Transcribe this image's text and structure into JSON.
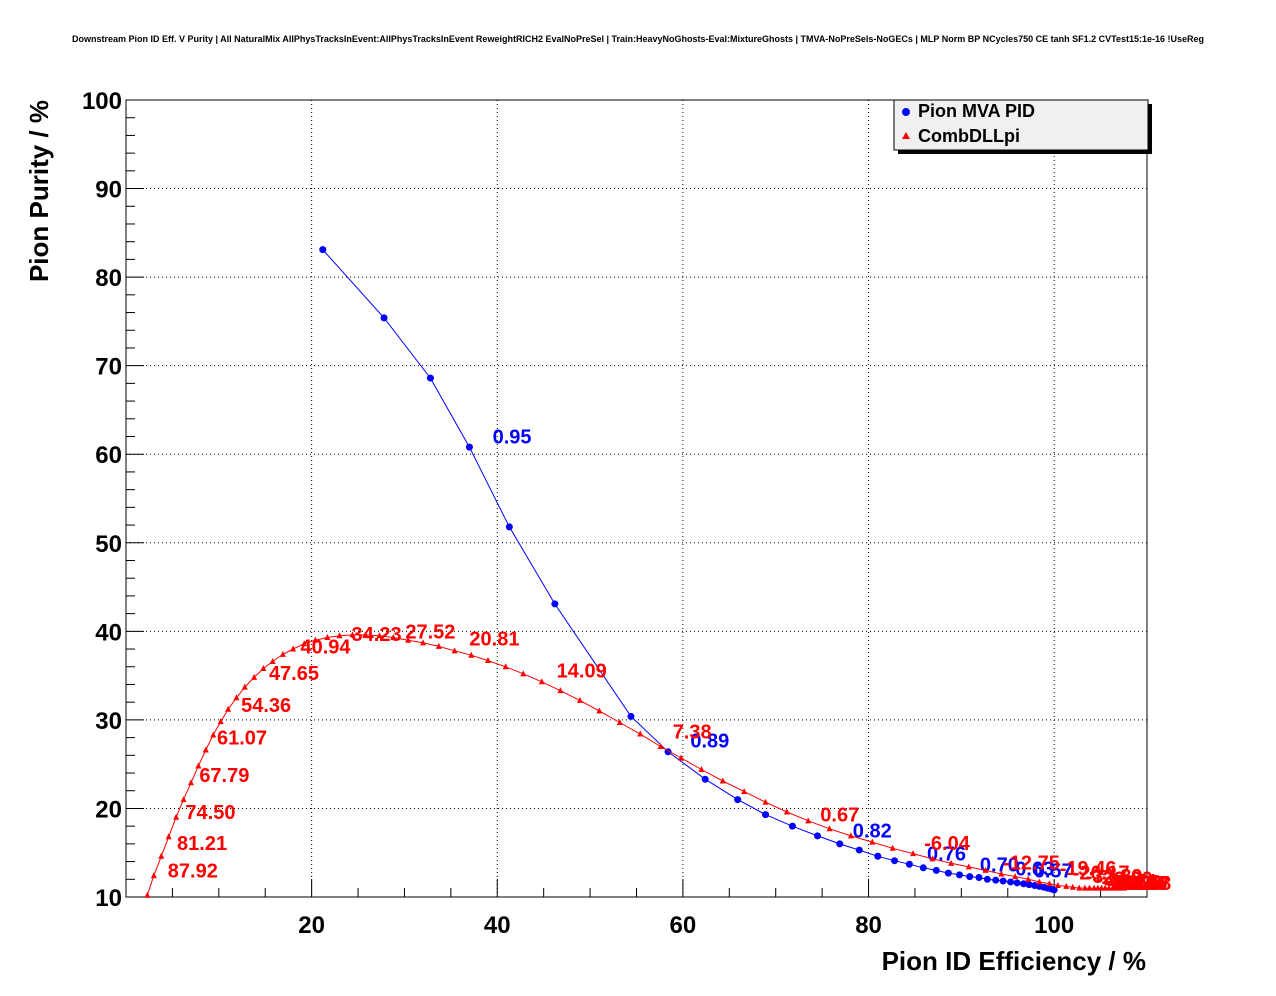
{
  "chart_data": {
    "type": "line",
    "title": "Downstream Pion ID Eff. V Purity | All NaturalMix AllPhysTracksInEvent:AllPhysTracksInEvent ReweightRICH2 EvalNoPreSel | Train:HeavyNoGhosts-Eval:MixtureGhosts | TMVA-NoPreSels-NoGECs | MLP Norm BP NCycles750 CE tanh SF1.2 CVTest15:1e-16 !UseReg",
    "xlabel": "Pion ID Efficiency / %",
    "ylabel": "Pion Purity / %",
    "xlim": [
      0,
      110
    ],
    "ylim": [
      10,
      100
    ],
    "xticks": [
      20,
      40,
      60,
      80,
      100
    ],
    "yticks": [
      10,
      20,
      30,
      40,
      50,
      60,
      70,
      80,
      90,
      100
    ],
    "grid": true,
    "legend_position": "top-right",
    "series": [
      {
        "name": "Pion MVA PID",
        "color": "#0000ff",
        "marker": "circle",
        "x": [
          21.2,
          27.8,
          32.8,
          37.0,
          41.3,
          46.2,
          54.4,
          58.4,
          62.4,
          65.9,
          68.9,
          71.8,
          74.5,
          76.9,
          79.0,
          81.0,
          82.8,
          84.4,
          85.9,
          87.3,
          88.6,
          89.8,
          90.9,
          91.9,
          92.8,
          93.7,
          94.5,
          95.3,
          96.0,
          96.7,
          97.3,
          97.9,
          98.4,
          98.9,
          99.3,
          99.7,
          100.0
        ],
        "y": [
          83.1,
          75.4,
          68.6,
          60.8,
          51.8,
          43.1,
          30.4,
          26.4,
          23.3,
          21.0,
          19.3,
          18.0,
          16.9,
          16.0,
          15.3,
          14.6,
          14.1,
          13.7,
          13.3,
          13.0,
          12.7,
          12.5,
          12.3,
          12.2,
          12.0,
          11.9,
          11.8,
          11.7,
          11.6,
          11.5,
          11.4,
          11.3,
          11.2,
          11.1,
          11.0,
          10.9,
          10.8
        ],
        "labels": [
          {
            "text": "0.95",
            "x": 39.5,
            "y": 61.2
          },
          {
            "text": "0.89",
            "x": 60.8,
            "y": 26.9
          },
          {
            "text": "0.82",
            "x": 78.3,
            "y": 16.7
          },
          {
            "text": "0.76",
            "x": 86.3,
            "y": 14.1
          },
          {
            "text": "0.70",
            "x": 92.0,
            "y": 12.9
          },
          {
            "text": "0.63",
            "x": 95.8,
            "y": 12.4
          },
          {
            "text": "0.57",
            "x": 97.8,
            "y": 12.2
          }
        ]
      },
      {
        "name": "CombDLLpi",
        "color": "#ff0000",
        "marker": "triangle",
        "x": [
          2.3,
          3.0,
          3.8,
          4.6,
          5.4,
          6.2,
          7.0,
          7.8,
          8.6,
          9.4,
          10.2,
          11.0,
          11.9,
          12.8,
          13.8,
          14.8,
          15.8,
          16.9,
          18.0,
          19.2,
          20.4,
          21.7,
          23.0,
          24.4,
          25.8,
          27.3,
          28.8,
          30.4,
          32.0,
          33.7,
          35.4,
          37.2,
          39.0,
          40.9,
          42.8,
          44.8,
          46.8,
          48.9,
          51.0,
          53.2,
          55.4,
          57.6,
          59.8,
          62.0,
          64.3,
          66.6,
          68.9,
          71.2,
          73.5,
          75.8,
          78.1,
          80.4,
          82.6,
          84.8,
          86.9,
          88.9,
          90.8,
          92.6,
          94.3,
          95.8,
          97.2,
          98.4,
          99.5,
          100.4,
          101.3,
          102.0,
          102.7,
          103.3,
          103.8,
          104.3,
          104.7,
          105.1,
          105.5,
          105.9,
          106.3,
          106.7,
          107.1,
          107.5
        ],
        "y": [
          10.2,
          12.4,
          14.6,
          16.8,
          19.0,
          21.0,
          22.9,
          24.8,
          26.6,
          28.3,
          29.8,
          31.2,
          32.5,
          33.7,
          34.8,
          35.8,
          36.6,
          37.4,
          38.0,
          38.6,
          39.0,
          39.3,
          39.5,
          39.6,
          39.6,
          39.5,
          39.3,
          39.0,
          38.7,
          38.3,
          37.8,
          37.3,
          36.7,
          36.0,
          35.2,
          34.3,
          33.3,
          32.2,
          31.0,
          29.7,
          28.4,
          27.0,
          25.7,
          24.4,
          23.1,
          21.9,
          20.7,
          19.6,
          18.6,
          17.7,
          16.9,
          16.2,
          15.5,
          14.9,
          14.3,
          13.8,
          13.4,
          13.0,
          12.6,
          12.3,
          12.0,
          11.7,
          11.5,
          11.3,
          11.2,
          11.1,
          11.0,
          11.0,
          11.0,
          11.0,
          11.0,
          11.0,
          11.0,
          11.0,
          11.0,
          11.0,
          11.0,
          11.0
        ],
        "labels": [
          {
            "text": "87.92",
            "x": 4.5,
            "y": 12.2
          },
          {
            "text": "81.21",
            "x": 5.5,
            "y": 15.3
          },
          {
            "text": "74.50",
            "x": 6.4,
            "y": 18.8
          },
          {
            "text": "67.79",
            "x": 7.9,
            "y": 23.0
          },
          {
            "text": "61.07",
            "x": 9.8,
            "y": 27.2
          },
          {
            "text": "54.36",
            "x": 12.4,
            "y": 30.9
          },
          {
            "text": "47.65",
            "x": 15.4,
            "y": 34.5
          },
          {
            "text": "40.94",
            "x": 18.8,
            "y": 37.5
          },
          {
            "text": "34.23",
            "x": 24.3,
            "y": 38.9
          },
          {
            "text": "27.52",
            "x": 30.1,
            "y": 39.2
          },
          {
            "text": "20.81",
            "x": 37.0,
            "y": 38.4
          },
          {
            "text": "14.09",
            "x": 46.4,
            "y": 34.8
          },
          {
            "text": "7.38",
            "x": 58.9,
            "y": 27.9
          },
          {
            "text": "0.67",
            "x": 74.8,
            "y": 18.5
          },
          {
            "text": "-6.04",
            "x": 86.0,
            "y": 15.3
          },
          {
            "text": "-12.75",
            "x": 94.5,
            "y": 13.1
          },
          {
            "text": "-19.46",
            "x": 100.6,
            "y": 12.5
          },
          {
            "text": "-26.17",
            "x": 102.0,
            "y": 12.0
          },
          {
            "text": "-32.89",
            "x": 103.4,
            "y": 11.6
          },
          {
            "text": "-39.60",
            "x": 104.5,
            "y": 11.3
          },
          {
            "text": "-46.31",
            "x": 105.1,
            "y": 11.0
          },
          {
            "text": "-53.02",
            "x": 105.5,
            "y": 10.9
          },
          {
            "text": "-59.73",
            "x": 105.7,
            "y": 10.8
          },
          {
            "text": "-66.44",
            "x": 105.9,
            "y": 10.8
          },
          {
            "text": "-73.16",
            "x": 106.1,
            "y": 10.8
          },
          {
            "text": "-79.87",
            "x": 106.3,
            "y": 10.8
          },
          {
            "text": "-86.58",
            "x": 106.5,
            "y": 10.8
          }
        ]
      }
    ]
  }
}
